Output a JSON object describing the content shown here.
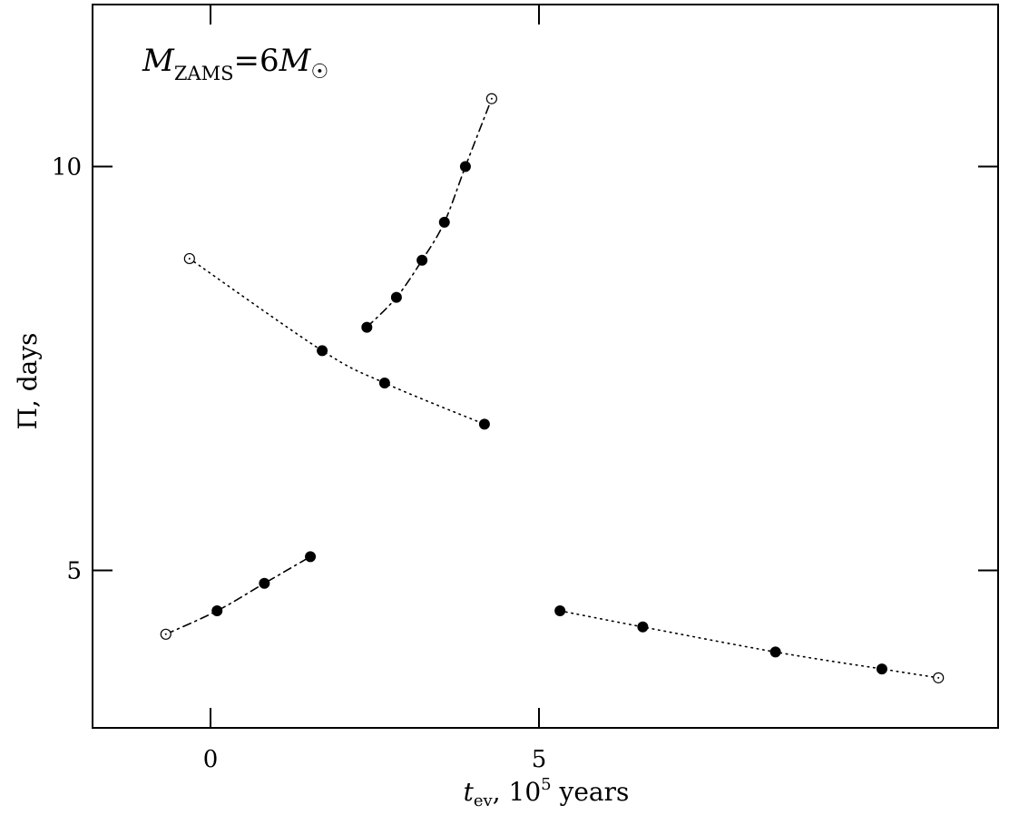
{
  "chart_data": {
    "type": "line",
    "title": "",
    "annotation": {
      "symbol": "M",
      "subscript": "ZAMS",
      "equals": "=6",
      "mass_symbol": "M",
      "solar_symbol": "☉"
    },
    "xlabel": {
      "symbol": "t",
      "subscript": "ev",
      "text": ", 10",
      "superscript": "5",
      "unit": " years"
    },
    "ylabel": "Π, days",
    "xlim": [
      -1.8,
      11.9
    ],
    "ylim": [
      3.0,
      12.0
    ],
    "xticks": [
      0,
      5
    ],
    "xtick_labels": [
      "0",
      "5"
    ],
    "yticks": [
      5,
      10
    ],
    "ytick_labels": [
      "5",
      "10"
    ],
    "series": [
      {
        "style": "dashdot",
        "points": [
          {
            "x": -0.68,
            "y": 4.21,
            "filled": false
          },
          {
            "x": 0.1,
            "y": 4.5,
            "filled": true
          },
          {
            "x": 0.82,
            "y": 4.84,
            "filled": true
          },
          {
            "x": 1.52,
            "y": 5.17,
            "filled": true
          }
        ]
      },
      {
        "style": "dotted",
        "points": [
          {
            "x": -0.32,
            "y": 8.86,
            "filled": false
          },
          {
            "x": 1.7,
            "y": 7.72,
            "filled": true
          },
          {
            "x": 2.65,
            "y": 7.32,
            "filled": true
          },
          {
            "x": 4.17,
            "y": 6.81,
            "filled": true
          }
        ]
      },
      {
        "style": "dashdot",
        "points": [
          {
            "x": 2.38,
            "y": 8.01,
            "filled": true
          },
          {
            "x": 2.83,
            "y": 8.38,
            "filled": true
          },
          {
            "x": 3.22,
            "y": 8.84,
            "filled": true
          },
          {
            "x": 3.56,
            "y": 9.31,
            "filled": true
          },
          {
            "x": 3.88,
            "y": 10.0,
            "filled": true
          },
          {
            "x": 4.28,
            "y": 10.84,
            "filled": false
          }
        ]
      },
      {
        "style": "dotted",
        "points": [
          {
            "x": 5.32,
            "y": 4.5,
            "filled": true
          },
          {
            "x": 6.58,
            "y": 4.3,
            "filled": true
          },
          {
            "x": 8.6,
            "y": 3.99,
            "filled": true
          },
          {
            "x": 10.22,
            "y": 3.78,
            "filled": true
          },
          {
            "x": 11.08,
            "y": 3.67,
            "filled": false
          }
        ]
      }
    ]
  }
}
